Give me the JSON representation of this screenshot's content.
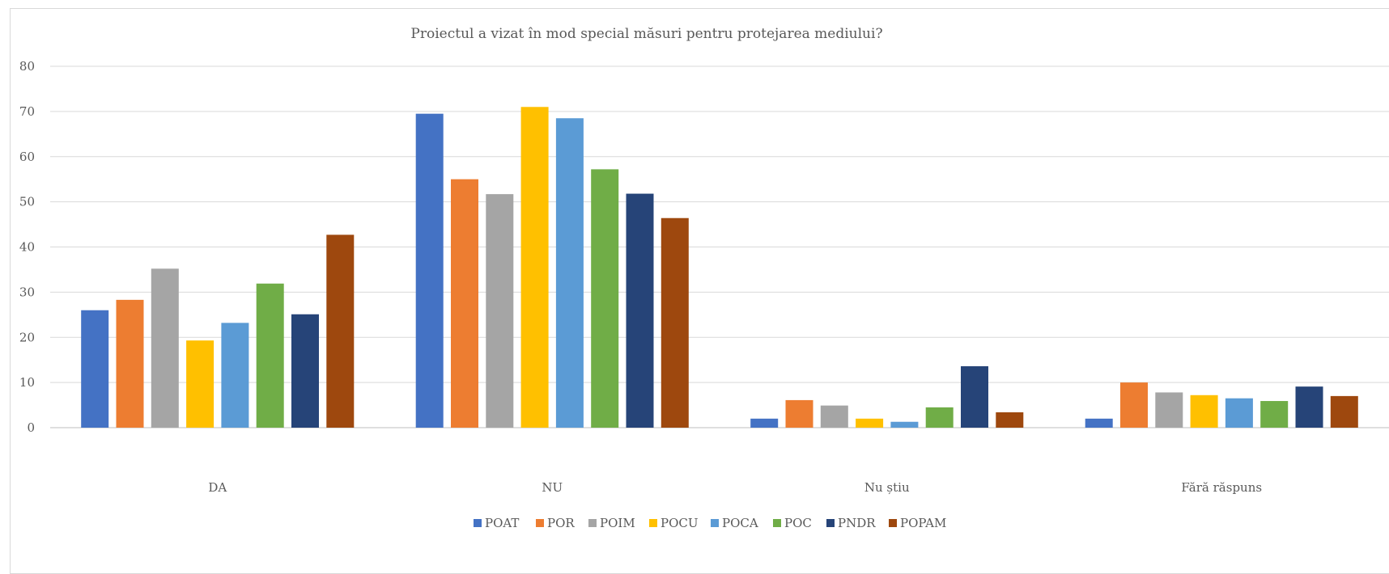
{
  "chart_data": {
    "type": "bar",
    "title": "Proiectul a vizat în mod special măsuri pentru protejarea mediului?",
    "xlabel": "",
    "ylabel": "",
    "ylim": [
      0,
      80
    ],
    "yticks": [
      0,
      10,
      20,
      30,
      40,
      50,
      60,
      70,
      80
    ],
    "grid": true,
    "legend_position": "bottom",
    "categories": [
      "DA",
      "NU",
      "Nu știu",
      "Fără răspuns"
    ],
    "series": [
      {
        "name": "POAT",
        "color": "#4472c4",
        "values": [
          26.0,
          69.5,
          2.0,
          2.0
        ]
      },
      {
        "name": "POR",
        "color": "#ed7d31",
        "values": [
          28.3,
          55.0,
          6.1,
          10.0
        ]
      },
      {
        "name": "POIM",
        "color": "#a5a5a5",
        "values": [
          35.2,
          51.7,
          4.9,
          7.8
        ]
      },
      {
        "name": "POCU",
        "color": "#ffc000",
        "values": [
          19.3,
          71.0,
          2.0,
          7.2
        ]
      },
      {
        "name": "POCA",
        "color": "#5b9bd5",
        "values": [
          23.2,
          68.5,
          1.3,
          6.5
        ]
      },
      {
        "name": "POC",
        "color": "#70ad47",
        "values": [
          31.9,
          57.2,
          4.5,
          5.9
        ]
      },
      {
        "name": "PNDR",
        "color": "#264478",
        "values": [
          25.1,
          51.8,
          13.6,
          9.1
        ]
      },
      {
        "name": "POPAM",
        "color": "#9e480e",
        "values": [
          42.7,
          46.4,
          3.4,
          7.0
        ]
      }
    ]
  }
}
